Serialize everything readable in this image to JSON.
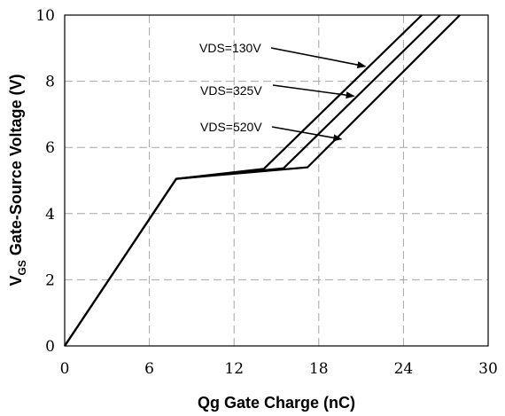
{
  "chart_data": {
    "type": "line",
    "xlabel": "Qg Gate Charge (nC)",
    "ylabel_main": "V",
    "ylabel_sub": "GS",
    "ylabel_rest": " Gate-Source Voltage (V)",
    "xlim": [
      0,
      30
    ],
    "ylim": [
      0,
      10
    ],
    "xticks": [
      0,
      6,
      12,
      18,
      24,
      30
    ],
    "yticks": [
      0,
      2,
      4,
      6,
      8,
      10
    ],
    "grid": true,
    "grid_style": "dashed",
    "series": [
      {
        "label": "VDS=130V",
        "x": [
          0,
          7.9,
          14.1,
          25.3
        ],
        "y": [
          0,
          5.05,
          5.35,
          10
        ],
        "arrow_to": [
          21.3,
          8.45
        ]
      },
      {
        "label": "VDS=325V",
        "x": [
          0,
          7.9,
          15.5,
          26.6
        ],
        "y": [
          0,
          5.05,
          5.37,
          10
        ],
        "arrow_to": [
          20.5,
          7.55
        ]
      },
      {
        "label": "VDS=520V",
        "x": [
          0,
          7.9,
          17.2,
          28.0
        ],
        "y": [
          0,
          5.05,
          5.4,
          10
        ],
        "arrow_to": [
          19.6,
          6.25
        ]
      }
    ]
  }
}
